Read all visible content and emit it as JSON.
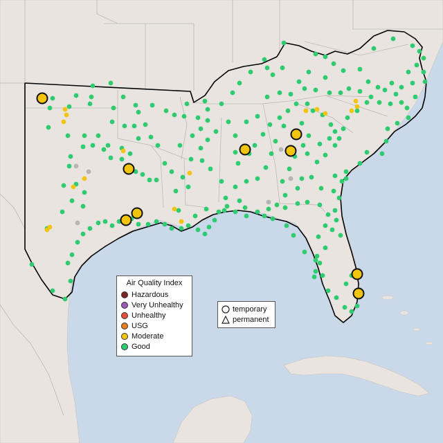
{
  "legend": {
    "title": "Air Quality Index",
    "items": [
      {
        "label": "Hazardous",
        "color": "#7e2424"
      },
      {
        "label": "Very Unhealthy",
        "color": "#9b59b6"
      },
      {
        "label": "Unhealthy",
        "color": "#e74c3c"
      },
      {
        "label": "USG",
        "color": "#e67e22"
      },
      {
        "label": "Moderate",
        "color": "#f1c40f"
      },
      {
        "label": "Good",
        "color": "#2ecc71"
      }
    ]
  },
  "shape_legend": {
    "temporary": "temporary",
    "permanent": "permanent"
  },
  "colors": {
    "ocean": "#c9d9ea",
    "land": "#e9e4df",
    "good": "#2ecc71",
    "moderate": "#f1c40f",
    "unknown": "#b5b5b5"
  }
}
